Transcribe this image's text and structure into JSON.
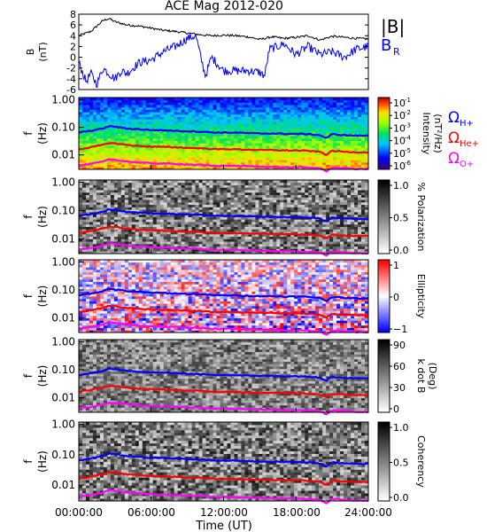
{
  "title": "ACE Mag 2012-020",
  "xlabel": "Time (UT)",
  "x_ticks": [
    "00:00:00",
    "06:00:00",
    "12:00:00",
    "18:00:00",
    "24:00:00"
  ],
  "colors": {
    "bmag": "#000000",
    "br": "#0000ff",
    "h_plus": "#0000ff",
    "he_plus": "#ff0000",
    "o_plus": "#ff00ff"
  },
  "chart_data": [
    {
      "type": "line",
      "panel": "field",
      "ylabel_top": "B",
      "ylabel_bottom": "(nT)",
      "ylim": [
        -6,
        8
      ],
      "y_ticks": [
        "8",
        "6",
        "4",
        "2",
        "0",
        "-2",
        "-4",
        "-6"
      ],
      "x_unit": "hours UT",
      "legend": [
        "|B|",
        "B",
        "R"
      ],
      "series": [
        {
          "name": "|B|",
          "x": [
            0,
            1,
            1.5,
            2,
            2.5,
            3,
            4,
            5,
            6,
            7,
            8,
            9,
            10,
            11,
            12,
            13,
            14,
            15,
            16,
            17,
            18,
            19,
            20,
            21,
            22,
            23,
            24
          ],
          "values": [
            4.0,
            4.8,
            5.8,
            6.8,
            7.2,
            6.6,
            6.0,
            5.8,
            5.4,
            5.0,
            4.8,
            4.5,
            4.2,
            4.0,
            4.1,
            4.0,
            3.8,
            3.3,
            3.8,
            3.5,
            3.7,
            4.0,
            3.2,
            3.9,
            3.7,
            3.5,
            3.4
          ]
        },
        {
          "name": "B_R",
          "x": [
            0,
            0.6,
            1,
            1.5,
            2,
            2.5,
            3,
            3.5,
            4,
            5,
            6,
            7,
            8,
            9,
            9.7,
            10,
            10.5,
            11,
            12,
            13,
            14,
            15,
            15.4,
            15.8,
            16.5,
            17,
            18,
            19,
            20,
            21,
            22,
            23,
            24
          ],
          "values": [
            -1,
            -4.5,
            -3,
            -5,
            -2,
            -3,
            -4,
            -2.5,
            -3,
            -1,
            -0.5,
            1,
            2,
            3.5,
            4,
            1,
            -3.5,
            0,
            -2.5,
            -2.5,
            -2.5,
            -2.8,
            -3.5,
            1.5,
            2,
            2.5,
            0.5,
            2,
            0.5,
            1,
            0,
            1.5,
            2
          ]
        }
      ]
    },
    {
      "type": "heatmap",
      "panel": "intensity",
      "ylabel_top": "f",
      "ylabel_bottom": "(Hz)",
      "y_scale": "log",
      "y_ticks": [
        "1.00",
        "0.10",
        "0.01"
      ],
      "colorbar": {
        "scale": "log",
        "ticks": [
          "10",
          "10",
          "10",
          "10",
          "10",
          "10"
        ],
        "exponents": [
          "-1",
          "-2",
          "-3",
          "-4",
          "-5",
          "-6"
        ],
        "label": [
          "Intensity",
          "(nT²/Hz)"
        ]
      },
      "side_labels": [
        {
          "text": "Ω",
          "sub": "H+"
        },
        {
          "text": "Ω",
          "sub": "He+"
        },
        {
          "text": "Ω",
          "sub": "O+"
        }
      ]
    },
    {
      "type": "heatmap",
      "panel": "polarization",
      "ylabel_top": "f",
      "ylabel_bottom": "(Hz)",
      "y_scale": "log",
      "y_ticks": [
        "1.00",
        "0.10",
        "0.01"
      ],
      "colorbar": {
        "ticks": [
          "1.0",
          "0.5",
          "0.0"
        ],
        "label": [
          "% Polarization"
        ]
      }
    },
    {
      "type": "heatmap",
      "panel": "ellipticity",
      "ylabel_top": "f",
      "ylabel_bottom": "(Hz)",
      "y_scale": "log",
      "y_ticks": [
        "1.00",
        "0.10",
        "0.01"
      ],
      "colorbar": {
        "ticks": [
          "1",
          "0",
          "−1"
        ],
        "label": [
          "Ellipticity"
        ]
      }
    },
    {
      "type": "heatmap",
      "panel": "k_dot_b",
      "ylabel_top": "f",
      "ylabel_bottom": "(Hz)",
      "y_scale": "log",
      "y_ticks": [
        "1.00",
        "0.10",
        "0.01"
      ],
      "colorbar": {
        "ticks": [
          "90",
          "60",
          "30",
          "0"
        ],
        "label": [
          "k dot B",
          "(Deg)"
        ]
      }
    },
    {
      "type": "heatmap",
      "panel": "coherency",
      "ylabel_top": "f",
      "ylabel_bottom": "(Hz)",
      "y_scale": "log",
      "y_ticks": [
        "1.00",
        "0.10",
        "0.01"
      ],
      "colorbar": {
        "ticks": [
          "1.0",
          "0.5",
          "0.0"
        ],
        "label": [
          "Coherency"
        ]
      }
    }
  ],
  "gyro_lines": {
    "x": [
      0,
      1,
      2,
      2.5,
      3,
      4,
      5,
      6,
      7,
      8,
      9,
      10,
      11,
      11.5,
      12,
      13,
      14,
      15,
      16,
      17,
      18,
      19,
      20,
      20.5,
      21,
      22,
      23,
      24
    ],
    "h_plus_hz": [
      0.065,
      0.075,
      0.09,
      0.11,
      0.105,
      0.09,
      0.085,
      0.08,
      0.078,
      0.075,
      0.072,
      0.07,
      0.066,
      0.064,
      0.065,
      0.064,
      0.062,
      0.06,
      0.06,
      0.058,
      0.058,
      0.057,
      0.052,
      0.04,
      0.056,
      0.052,
      0.05,
      0.05
    ],
    "he_plus_hz": [
      0.016,
      0.019,
      0.023,
      0.027,
      0.026,
      0.023,
      0.021,
      0.02,
      0.0195,
      0.019,
      0.018,
      0.0175,
      0.0165,
      0.016,
      0.0163,
      0.016,
      0.0155,
      0.015,
      0.015,
      0.0145,
      0.0145,
      0.014,
      0.013,
      0.01,
      0.014,
      0.013,
      0.0125,
      0.0125
    ],
    "o_plus_hz": [
      0.0041,
      0.0047,
      0.0057,
      0.0068,
      0.0066,
      0.0058,
      0.0053,
      0.005,
      0.0049,
      0.0047,
      0.0045,
      0.0044,
      0.0041,
      0.004,
      0.0041,
      0.004,
      0.0039,
      0.0038,
      0.0037,
      0.0036,
      0.0036,
      0.0035,
      0.0033,
      0.0025,
      0.0035,
      0.0033,
      0.0031,
      0.0031
    ]
  }
}
